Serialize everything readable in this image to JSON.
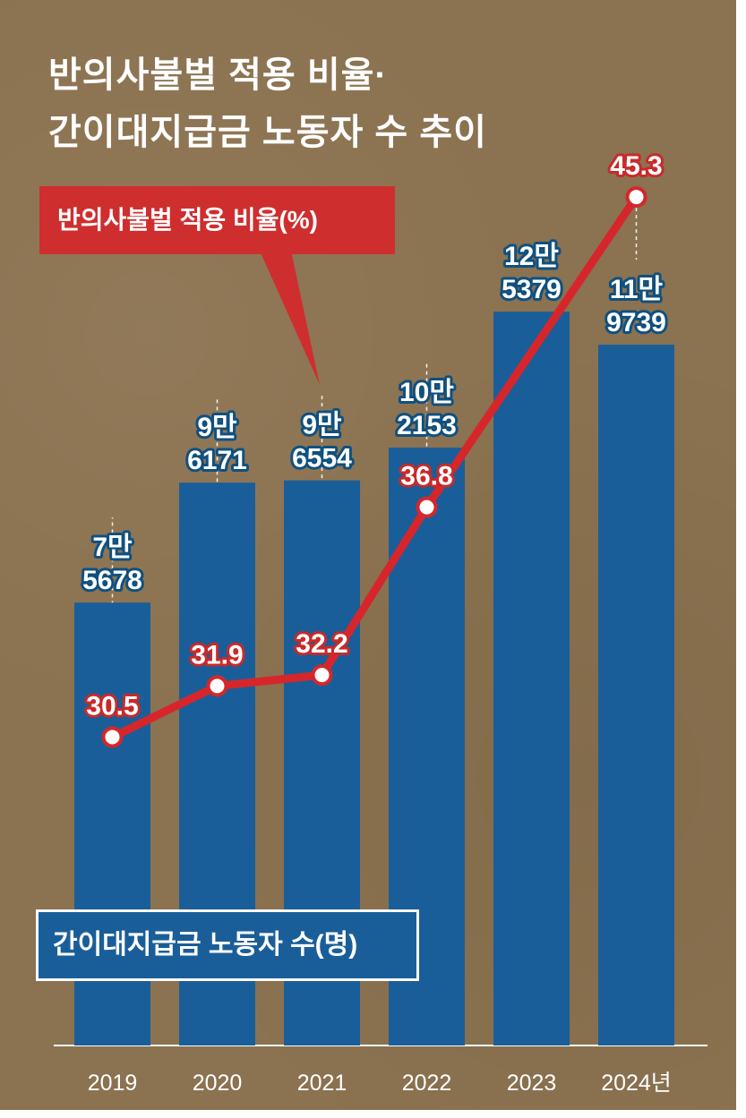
{
  "title_line1": "반의사불벌 적용 비율·",
  "title_line2": "간이대지급금 노동자 수 추이",
  "chart_data": {
    "type": "bar",
    "categories": [
      "2019",
      "2020",
      "2021",
      "2022",
      "2023",
      "2024년"
    ],
    "series": [
      {
        "name": "간이대지급금 노동자 수(명)",
        "type": "bar",
        "values": [
          75678,
          96171,
          96554,
          102153,
          125379,
          119739
        ],
        "labels": [
          [
            "7만",
            "5678"
          ],
          [
            "9만",
            "6171"
          ],
          [
            "9만",
            "6554"
          ],
          [
            "10만",
            "2153"
          ],
          [
            "12만",
            "5379"
          ],
          [
            "11만",
            "9739"
          ]
        ],
        "color": "#1a5e99"
      },
      {
        "name": "반의사불벌 적용 비율(%)",
        "type": "line",
        "values": [
          30.5,
          31.9,
          32.2,
          36.8,
          null,
          45.3
        ],
        "labels": [
          "30.5",
          "31.9",
          "32.2",
          "36.8",
          "",
          "45.3"
        ],
        "color": "#d6262b"
      }
    ],
    "bar_ylim": [
      0,
      130000
    ],
    "line_ylim": [
      22,
      48
    ],
    "grid": false
  }
}
